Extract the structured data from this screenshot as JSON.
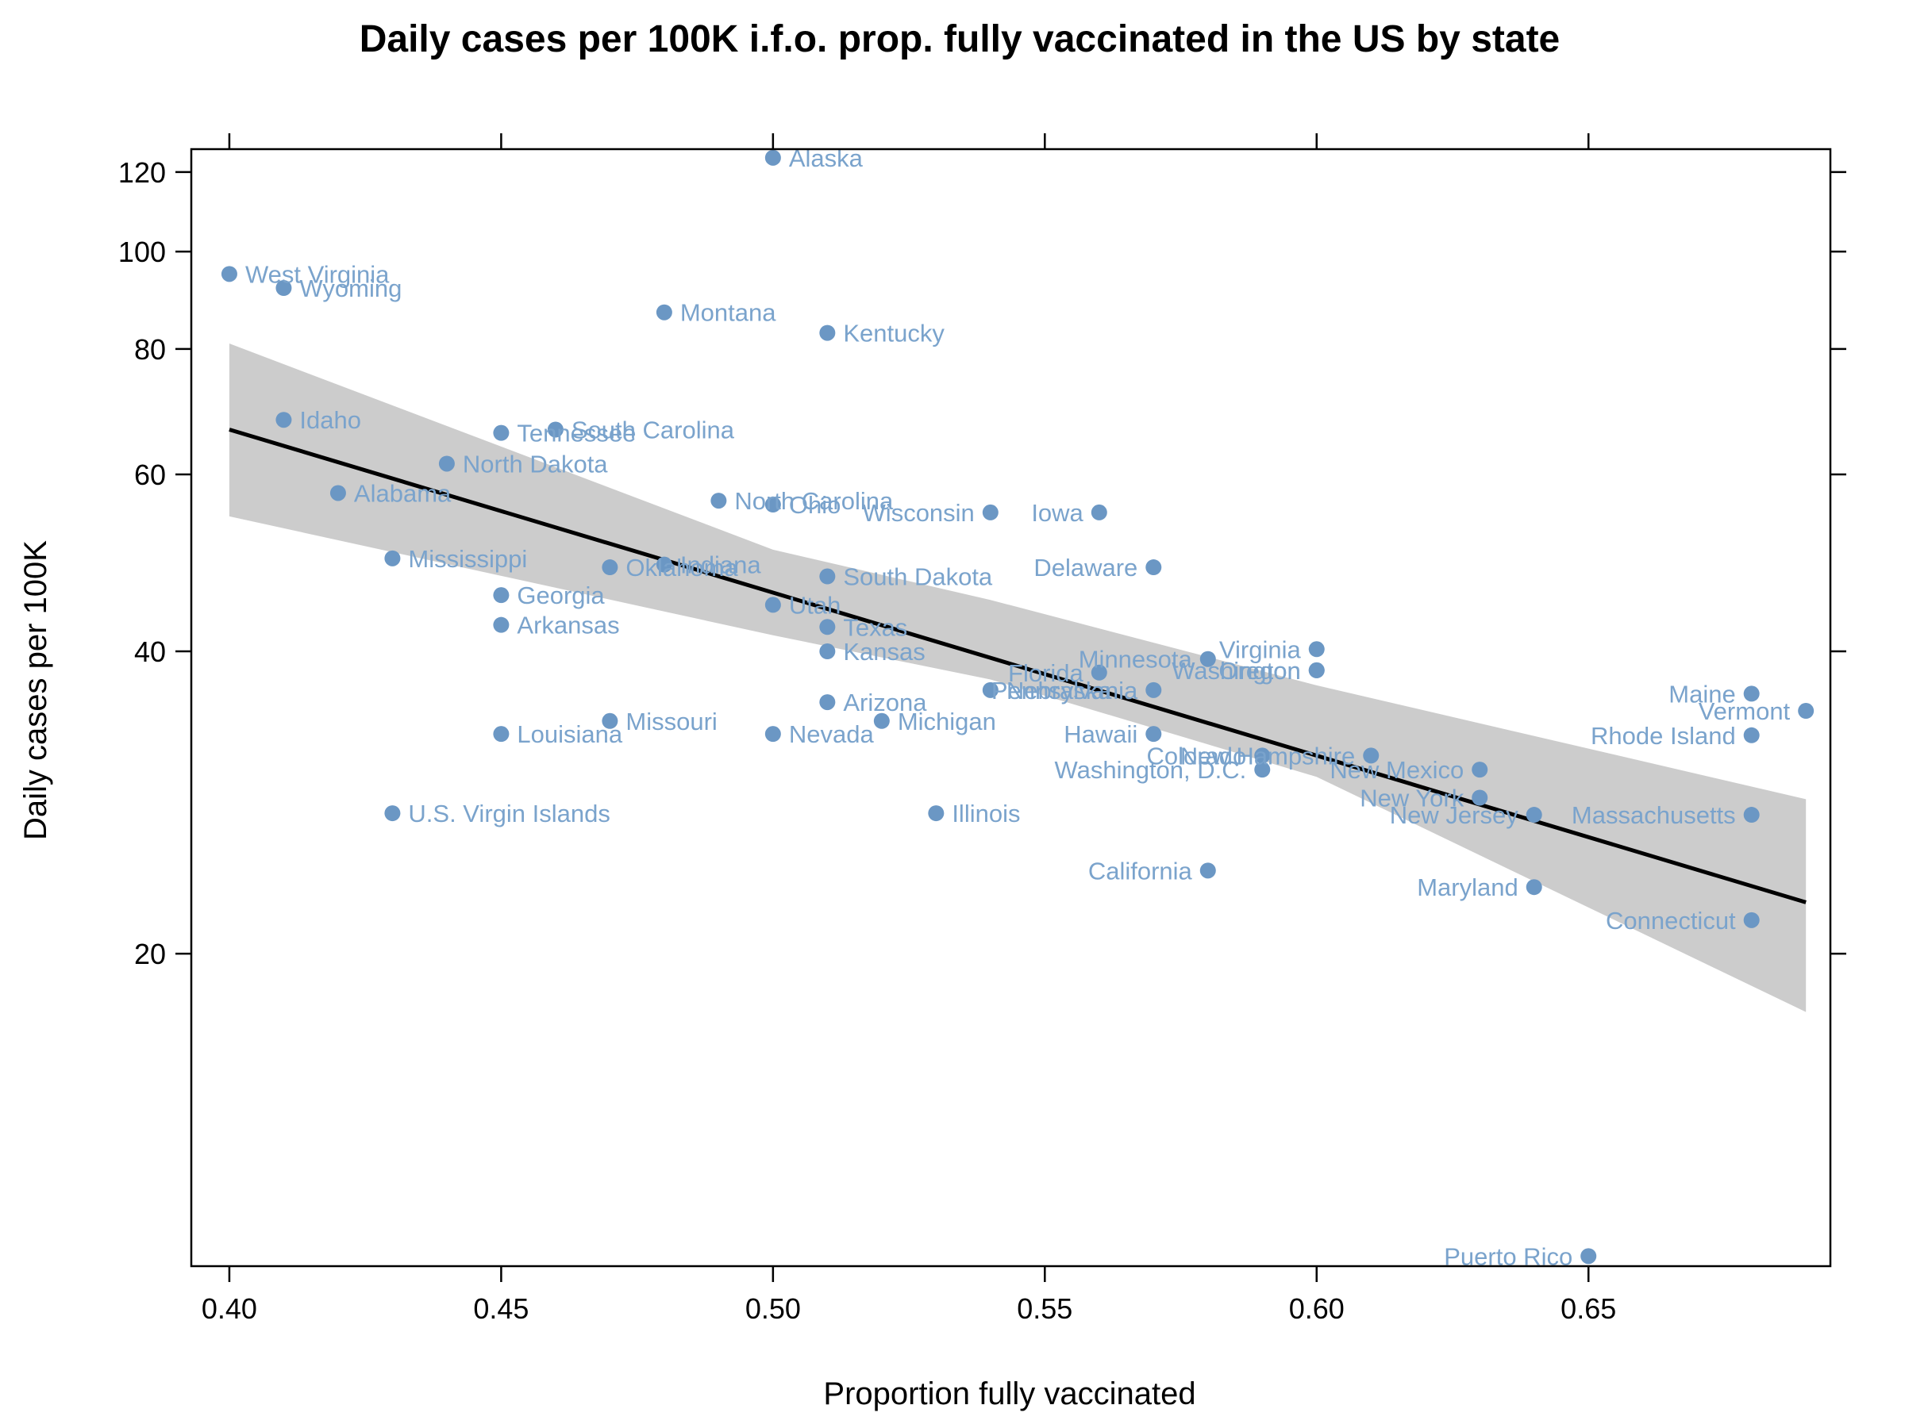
{
  "chart_data": {
    "type": "scatter",
    "title": "Daily cases per 100K i.f.o. prop. fully vaccinated in the US by state",
    "xlabel": "Proportion fully vaccinated",
    "ylabel": "Daily cases per 100K",
    "xlim": [
      0.393,
      0.6945
    ],
    "ylim_log10": [
      0.99,
      2.102
    ],
    "y_scale": "log",
    "x_ticks": [
      "0.40",
      "0.45",
      "0.50",
      "0.55",
      "0.60",
      "0.65"
    ],
    "x_tick_values": [
      0.4,
      0.45,
      0.5,
      0.55,
      0.6,
      0.65
    ],
    "y_ticks": [
      "20",
      "40",
      "60",
      "80",
      "100",
      "120"
    ],
    "y_tick_values": [
      20,
      40,
      60,
      80,
      100,
      120
    ],
    "grid": false,
    "point_color": "#6b97c4",
    "label_color": "#7aa3cc",
    "fit_line_color": "#000000",
    "band_color": "#cccccc",
    "fit_line": {
      "x": [
        0.4,
        0.69
      ],
      "y": [
        66.5,
        22.5
      ]
    },
    "confidence_band": {
      "x": [
        0.4,
        0.5,
        0.54,
        0.6,
        0.69
      ],
      "upper": [
        81,
        50.5,
        45,
        37,
        28.5
      ],
      "lower": [
        54.5,
        41.5,
        37.5,
        30,
        17.5
      ]
    },
    "points": [
      {
        "label": "Alaska",
        "x": 0.5,
        "y": 124,
        "side": "right"
      },
      {
        "label": "West Virginia",
        "x": 0.4,
        "y": 95,
        "side": "right"
      },
      {
        "label": "Wyoming",
        "x": 0.41,
        "y": 92,
        "side": "right"
      },
      {
        "label": "Montana",
        "x": 0.48,
        "y": 87,
        "side": "right"
      },
      {
        "label": "Kentucky",
        "x": 0.51,
        "y": 83,
        "side": "right"
      },
      {
        "label": "Idaho",
        "x": 0.41,
        "y": 68,
        "side": "right"
      },
      {
        "label": "Tennessee",
        "x": 0.45,
        "y": 66,
        "side": "right"
      },
      {
        "label": "South Carolina",
        "x": 0.46,
        "y": 66.5,
        "side": "right"
      },
      {
        "label": "North Dakota",
        "x": 0.44,
        "y": 61.5,
        "side": "right"
      },
      {
        "label": "Alabama",
        "x": 0.42,
        "y": 57.5,
        "side": "right"
      },
      {
        "label": "North Carolina",
        "x": 0.49,
        "y": 56.5,
        "side": "right"
      },
      {
        "label": "Ohio",
        "x": 0.5,
        "y": 56,
        "side": "right"
      },
      {
        "label": "Wisconsin",
        "x": 0.54,
        "y": 55,
        "side": "left"
      },
      {
        "label": "Iowa",
        "x": 0.56,
        "y": 55,
        "side": "left"
      },
      {
        "label": "Mississippi",
        "x": 0.43,
        "y": 49.5,
        "side": "right"
      },
      {
        "label": "Oklahoma",
        "x": 0.47,
        "y": 48.5,
        "side": "right"
      },
      {
        "label": "Indiana",
        "x": 0.48,
        "y": 48.8,
        "side": "right"
      },
      {
        "label": "Delaware",
        "x": 0.57,
        "y": 48.5,
        "side": "left"
      },
      {
        "label": "South Dakota",
        "x": 0.51,
        "y": 47.5,
        "side": "right"
      },
      {
        "label": "Georgia",
        "x": 0.45,
        "y": 45.5,
        "side": "right"
      },
      {
        "label": "Utah",
        "x": 0.5,
        "y": 44.5,
        "side": "right"
      },
      {
        "label": "Arkansas",
        "x": 0.45,
        "y": 42.5,
        "side": "right"
      },
      {
        "label": "Texas",
        "x": 0.51,
        "y": 42.3,
        "side": "right"
      },
      {
        "label": "Kansas",
        "x": 0.51,
        "y": 40,
        "side": "right"
      },
      {
        "label": "Virginia",
        "x": 0.6,
        "y": 40.2,
        "side": "left"
      },
      {
        "label": "Minnesota",
        "x": 0.58,
        "y": 39.3,
        "side": "left"
      },
      {
        "label": "Washington",
        "x": 0.6,
        "y": 38.3,
        "side": "left"
      },
      {
        "label": "Oregon",
        "x": 0.6,
        "y": 38.3,
        "side": "left"
      },
      {
        "label": "Florida",
        "x": 0.56,
        "y": 38.1,
        "side": "left"
      },
      {
        "label": "Pennsylvania",
        "x": 0.57,
        "y": 36.6,
        "side": "left"
      },
      {
        "label": "Nebraska",
        "x": 0.54,
        "y": 36.6,
        "side": "right"
      },
      {
        "label": "Maine",
        "x": 0.68,
        "y": 36.3,
        "side": "left"
      },
      {
        "label": "Arizona",
        "x": 0.51,
        "y": 35.6,
        "side": "right"
      },
      {
        "label": "Vermont",
        "x": 0.69,
        "y": 34.9,
        "side": "left"
      },
      {
        "label": "Missouri",
        "x": 0.47,
        "y": 34.1,
        "side": "right"
      },
      {
        "label": "Michigan",
        "x": 0.52,
        "y": 34.1,
        "side": "right"
      },
      {
        "label": "Louisiana",
        "x": 0.45,
        "y": 33.1,
        "side": "right"
      },
      {
        "label": "Nevada",
        "x": 0.5,
        "y": 33.1,
        "side": "right"
      },
      {
        "label": "Hawaii",
        "x": 0.57,
        "y": 33.1,
        "side": "left"
      },
      {
        "label": "Rhode Island",
        "x": 0.68,
        "y": 33.0,
        "side": "left"
      },
      {
        "label": "Colorado",
        "x": 0.59,
        "y": 31.5,
        "side": "left"
      },
      {
        "label": "New Hampshire",
        "x": 0.61,
        "y": 31.5,
        "side": "left"
      },
      {
        "label": "Washington, D.C.",
        "x": 0.59,
        "y": 30.5,
        "side": "left"
      },
      {
        "label": "New Mexico",
        "x": 0.63,
        "y": 30.5,
        "side": "left"
      },
      {
        "label": "New York",
        "x": 0.63,
        "y": 28.6,
        "side": "left"
      },
      {
        "label": "U.S. Virgin Islands",
        "x": 0.43,
        "y": 27.6,
        "side": "right"
      },
      {
        "label": "Illinois",
        "x": 0.53,
        "y": 27.6,
        "side": "right"
      },
      {
        "label": "New Jersey",
        "x": 0.64,
        "y": 27.5,
        "side": "left"
      },
      {
        "label": "Massachusetts",
        "x": 0.68,
        "y": 27.5,
        "side": "left"
      },
      {
        "label": "California",
        "x": 0.58,
        "y": 24.2,
        "side": "left"
      },
      {
        "label": "Maryland",
        "x": 0.64,
        "y": 23.3,
        "side": "left"
      },
      {
        "label": "Connecticut",
        "x": 0.68,
        "y": 21.6,
        "side": "left"
      },
      {
        "label": "Puerto Rico",
        "x": 0.65,
        "y": 10.0,
        "side": "left"
      }
    ]
  }
}
